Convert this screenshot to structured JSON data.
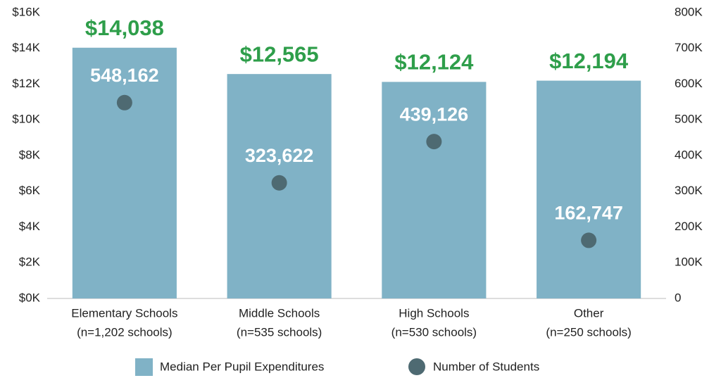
{
  "chart_data": {
    "type": "bar",
    "categories": [
      [
        "Elementary Schools",
        "(n=1,202 schools)"
      ],
      [
        "Middle Schools",
        "(n=535 schools)"
      ],
      [
        "High Schools",
        "(n=530 schools)"
      ],
      [
        "Other",
        "(n=250 schools)"
      ]
    ],
    "series": [
      {
        "name": "Median Per Pupil Expenditures",
        "type": "bar",
        "color": "#80b2c6",
        "values": [
          14038,
          12565,
          12124,
          12194
        ],
        "value_labels": [
          "$14,038",
          "$12,565",
          "$12,124",
          "$12,194"
        ]
      },
      {
        "name": "Number of Students",
        "type": "scatter",
        "axis": "y2",
        "color": "#4e6a72",
        "values": [
          548162,
          323622,
          439126,
          162747
        ],
        "value_labels": [
          "548,162",
          "323,622",
          "439,126",
          "162,747"
        ]
      }
    ],
    "ylim": [
      0,
      16000
    ],
    "yticks": [
      {
        "value": 0,
        "label": "$0K"
      },
      {
        "value": 2000,
        "label": "$2K"
      },
      {
        "value": 4000,
        "label": "$4K"
      },
      {
        "value": 6000,
        "label": "$6K"
      },
      {
        "value": 8000,
        "label": "$8K"
      },
      {
        "value": 10000,
        "label": "$10K"
      },
      {
        "value": 12000,
        "label": "$12K"
      },
      {
        "value": 14000,
        "label": "$14K"
      },
      {
        "value": 16000,
        "label": "$16K"
      }
    ],
    "y2lim": [
      0,
      800000
    ],
    "y2ticks": [
      0,
      {
        "value": 100000,
        "label": "100K"
      },
      {
        "value": 200000,
        "label": "200K"
      },
      {
        "value": 300000,
        "label": "300K"
      },
      {
        "value": 400000,
        "label": "400K"
      },
      {
        "value": 500000,
        "label": "500K"
      },
      {
        "value": 600000,
        "label": "600K"
      },
      {
        "value": 700000,
        "label": "700K"
      },
      {
        "value": 800000,
        "label": "800K"
      }
    ],
    "value_label_color": "#2e9e4a",
    "grid": false
  }
}
